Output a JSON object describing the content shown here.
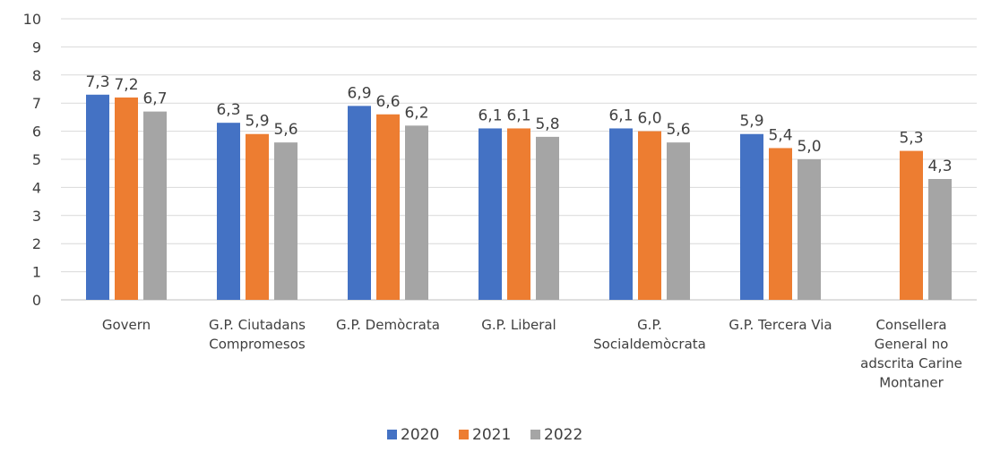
{
  "chart_data": {
    "type": "bar",
    "categories": [
      [
        "Govern"
      ],
      [
        "G.P. Ciutadans",
        "Compromesos"
      ],
      [
        "G.P. Demòcrata"
      ],
      [
        "G.P. Liberal"
      ],
      [
        "G.P.",
        "Socialdemòcrata"
      ],
      [
        "G.P. Tercera Via"
      ],
      [
        "Consellera",
        "General no",
        "adscrita Carine",
        "Montaner"
      ]
    ],
    "series": [
      {
        "name": "2020",
        "color": "#4472C4",
        "values": [
          7.3,
          6.3,
          6.9,
          6.1,
          6.1,
          5.9,
          null
        ],
        "labels": [
          "7,3",
          "6,3",
          "6,9",
          "6,1",
          "6,1",
          "5,9",
          ""
        ]
      },
      {
        "name": "2021",
        "color": "#ED7D31",
        "values": [
          7.2,
          5.9,
          6.6,
          6.1,
          6.0,
          5.4,
          5.3
        ],
        "labels": [
          "7,2",
          "5,9",
          "6,6",
          "6,1",
          "6,0",
          "5,4",
          "5,3"
        ]
      },
      {
        "name": "2022",
        "color": "#A5A5A5",
        "values": [
          6.7,
          5.6,
          6.2,
          5.8,
          5.6,
          5.0,
          4.3
        ],
        "labels": [
          "6,7",
          "5,6",
          "6,2",
          "5,8",
          "5,6",
          "5,0",
          "4,3"
        ]
      }
    ],
    "ylim": [
      0,
      10
    ],
    "yticks": [
      "0",
      "1",
      "2",
      "3",
      "4",
      "5",
      "6",
      "7",
      "8",
      "9",
      "10"
    ],
    "grid": true,
    "legend_position": "bottom",
    "title": "",
    "xlabel": "",
    "ylabel": ""
  }
}
